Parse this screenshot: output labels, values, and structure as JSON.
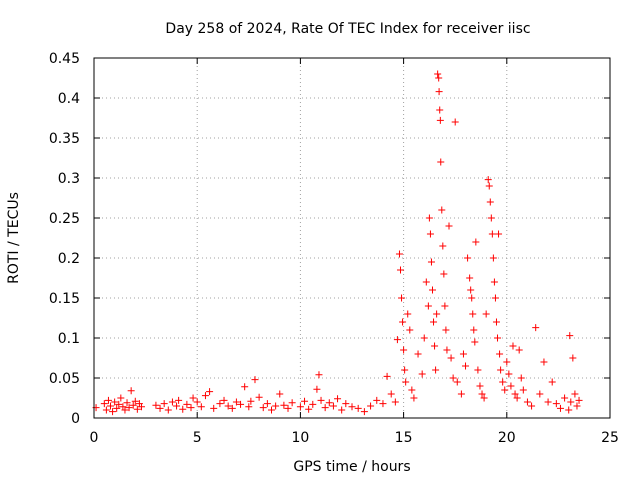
{
  "chart_data": {
    "type": "scatter",
    "title": "Day 258 of 2024, Rate Of TEC Index for receiver iisc",
    "xlabel": "GPS time / hours",
    "ylabel": "ROTI / TECUs",
    "xlim": [
      0,
      25
    ],
    "ylim": [
      0,
      0.45
    ],
    "xticks": [
      0,
      5,
      10,
      15,
      20,
      25
    ],
    "xtick_labels": [
      "0",
      "5",
      "10",
      "15",
      "20",
      "25"
    ],
    "yticks": [
      0,
      0.05,
      0.1,
      0.15,
      0.2,
      0.25,
      0.3,
      0.35,
      0.4,
      0.45
    ],
    "ytick_labels": [
      "0",
      "0.05",
      "0.1",
      "0.15",
      "0.2",
      "0.25",
      "0.3",
      "0.35",
      "0.4",
      "0.45"
    ],
    "grid": true,
    "marker": "+",
    "color": "#ff0000",
    "series": [
      {
        "name": "ROTI",
        "points": [
          [
            0.1,
            0.013
          ],
          [
            0.5,
            0.018
          ],
          [
            0.6,
            0.01
          ],
          [
            0.7,
            0.022
          ],
          [
            0.8,
            0.015
          ],
          [
            0.9,
            0.008
          ],
          [
            1.0,
            0.02
          ],
          [
            1.1,
            0.012
          ],
          [
            1.2,
            0.017
          ],
          [
            1.3,
            0.025
          ],
          [
            1.4,
            0.014
          ],
          [
            1.5,
            0.01
          ],
          [
            1.6,
            0.019
          ],
          [
            1.7,
            0.013
          ],
          [
            1.8,
            0.034
          ],
          [
            1.9,
            0.016
          ],
          [
            2.0,
            0.021
          ],
          [
            2.1,
            0.011
          ],
          [
            2.2,
            0.018
          ],
          [
            2.3,
            0.014
          ],
          [
            3.0,
            0.016
          ],
          [
            3.2,
            0.012
          ],
          [
            3.4,
            0.018
          ],
          [
            3.6,
            0.01
          ],
          [
            3.8,
            0.02
          ],
          [
            4.0,
            0.015
          ],
          [
            4.1,
            0.022
          ],
          [
            4.3,
            0.011
          ],
          [
            4.5,
            0.017
          ],
          [
            4.7,
            0.013
          ],
          [
            4.8,
            0.025
          ],
          [
            5.0,
            0.02
          ],
          [
            5.2,
            0.014
          ],
          [
            5.4,
            0.028
          ],
          [
            5.6,
            0.033
          ],
          [
            5.8,
            0.012
          ],
          [
            6.1,
            0.018
          ],
          [
            6.3,
            0.022
          ],
          [
            6.5,
            0.015
          ],
          [
            6.7,
            0.012
          ],
          [
            6.9,
            0.02
          ],
          [
            7.1,
            0.017
          ],
          [
            7.3,
            0.039
          ],
          [
            7.5,
            0.014
          ],
          [
            7.6,
            0.021
          ],
          [
            7.8,
            0.048
          ],
          [
            8.0,
            0.026
          ],
          [
            8.2,
            0.013
          ],
          [
            8.4,
            0.018
          ],
          [
            8.6,
            0.01
          ],
          [
            8.8,
            0.015
          ],
          [
            9.0,
            0.03
          ],
          [
            9.2,
            0.016
          ],
          [
            9.4,
            0.012
          ],
          [
            9.6,
            0.019
          ],
          [
            10.0,
            0.014
          ],
          [
            10.2,
            0.021
          ],
          [
            10.4,
            0.011
          ],
          [
            10.6,
            0.017
          ],
          [
            10.8,
            0.036
          ],
          [
            10.9,
            0.054
          ],
          [
            11.0,
            0.022
          ],
          [
            11.2,
            0.013
          ],
          [
            11.4,
            0.019
          ],
          [
            11.6,
            0.015
          ],
          [
            11.8,
            0.024
          ],
          [
            12.0,
            0.01
          ],
          [
            12.2,
            0.018
          ],
          [
            12.5,
            0.014
          ],
          [
            12.8,
            0.012
          ],
          [
            13.1,
            0.008
          ],
          [
            13.4,
            0.015
          ],
          [
            13.7,
            0.022
          ],
          [
            14.0,
            0.018
          ],
          [
            14.2,
            0.052
          ],
          [
            14.4,
            0.03
          ],
          [
            14.6,
            0.02
          ],
          [
            14.7,
            0.098
          ],
          [
            14.8,
            0.205
          ],
          [
            14.85,
            0.185
          ],
          [
            14.9,
            0.15
          ],
          [
            14.95,
            0.12
          ],
          [
            15.0,
            0.085
          ],
          [
            15.05,
            0.06
          ],
          [
            15.1,
            0.045
          ],
          [
            15.2,
            0.13
          ],
          [
            15.3,
            0.11
          ],
          [
            15.4,
            0.035
          ],
          [
            15.5,
            0.025
          ],
          [
            15.7,
            0.08
          ],
          [
            15.9,
            0.055
          ],
          [
            16.0,
            0.1
          ],
          [
            16.1,
            0.17
          ],
          [
            16.2,
            0.14
          ],
          [
            16.25,
            0.25
          ],
          [
            16.3,
            0.23
          ],
          [
            16.35,
            0.195
          ],
          [
            16.4,
            0.16
          ],
          [
            16.45,
            0.12
          ],
          [
            16.5,
            0.09
          ],
          [
            16.55,
            0.06
          ],
          [
            16.6,
            0.13
          ],
          [
            16.65,
            0.43
          ],
          [
            16.7,
            0.425
          ],
          [
            16.72,
            0.408
          ],
          [
            16.75,
            0.385
          ],
          [
            16.78,
            0.372
          ],
          [
            16.8,
            0.32
          ],
          [
            16.85,
            0.26
          ],
          [
            16.9,
            0.215
          ],
          [
            16.95,
            0.18
          ],
          [
            17.0,
            0.14
          ],
          [
            17.05,
            0.11
          ],
          [
            17.1,
            0.085
          ],
          [
            17.2,
            0.24
          ],
          [
            17.3,
            0.075
          ],
          [
            17.4,
            0.05
          ],
          [
            17.5,
            0.37
          ],
          [
            17.6,
            0.045
          ],
          [
            17.8,
            0.03
          ],
          [
            17.9,
            0.08
          ],
          [
            18.0,
            0.065
          ],
          [
            18.1,
            0.2
          ],
          [
            18.2,
            0.175
          ],
          [
            18.25,
            0.16
          ],
          [
            18.3,
            0.15
          ],
          [
            18.35,
            0.13
          ],
          [
            18.4,
            0.11
          ],
          [
            18.45,
            0.095
          ],
          [
            18.5,
            0.22
          ],
          [
            18.6,
            0.06
          ],
          [
            18.7,
            0.04
          ],
          [
            18.8,
            0.03
          ],
          [
            18.9,
            0.025
          ],
          [
            19.0,
            0.13
          ],
          [
            19.1,
            0.298
          ],
          [
            19.15,
            0.29
          ],
          [
            19.2,
            0.27
          ],
          [
            19.25,
            0.25
          ],
          [
            19.3,
            0.23
          ],
          [
            19.35,
            0.2
          ],
          [
            19.4,
            0.17
          ],
          [
            19.45,
            0.15
          ],
          [
            19.5,
            0.12
          ],
          [
            19.55,
            0.1
          ],
          [
            19.6,
            0.23
          ],
          [
            19.65,
            0.08
          ],
          [
            19.7,
            0.06
          ],
          [
            19.8,
            0.045
          ],
          [
            19.9,
            0.035
          ],
          [
            20.0,
            0.07
          ],
          [
            20.1,
            0.055
          ],
          [
            20.2,
            0.04
          ],
          [
            20.3,
            0.09
          ],
          [
            20.4,
            0.03
          ],
          [
            20.5,
            0.025
          ],
          [
            20.6,
            0.085
          ],
          [
            20.7,
            0.05
          ],
          [
            20.8,
            0.035
          ],
          [
            21.0,
            0.02
          ],
          [
            21.2,
            0.015
          ],
          [
            21.4,
            0.113
          ],
          [
            21.6,
            0.03
          ],
          [
            21.8,
            0.07
          ],
          [
            22.0,
            0.02
          ],
          [
            22.2,
            0.045
          ],
          [
            22.4,
            0.018
          ],
          [
            22.6,
            0.012
          ],
          [
            22.8,
            0.025
          ],
          [
            23.0,
            0.01
          ],
          [
            23.05,
            0.103
          ],
          [
            23.1,
            0.02
          ],
          [
            23.2,
            0.075
          ],
          [
            23.3,
            0.03
          ],
          [
            23.4,
            0.015
          ],
          [
            23.5,
            0.022
          ]
        ]
      }
    ]
  }
}
